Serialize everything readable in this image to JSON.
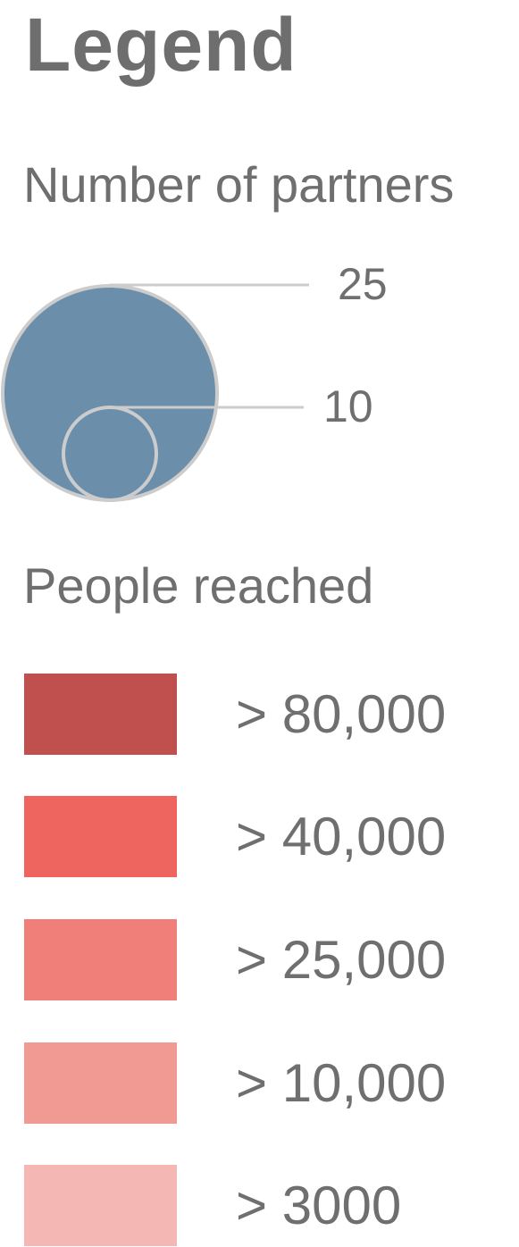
{
  "legend": {
    "title": "Legend",
    "partners": {
      "heading": "Number of partners",
      "bubble_fill": "#6b8eab",
      "bubble_stroke": "#cccccc",
      "leader_color": "#cccccc",
      "items": [
        {
          "label": "25",
          "value": 25
        },
        {
          "label": "10",
          "value": 10
        }
      ]
    },
    "people": {
      "heading": "People reached",
      "items": [
        {
          "label": "> 80,000",
          "color": "#c0504d"
        },
        {
          "label": "> 40,000",
          "color": "#ee6560"
        },
        {
          "label": "> 25,000",
          "color": "#ef7f78"
        },
        {
          "label": "> 10,000",
          "color": "#f19a93"
        },
        {
          "label": "> 3000",
          "color": "#f4b7b3"
        }
      ]
    }
  }
}
